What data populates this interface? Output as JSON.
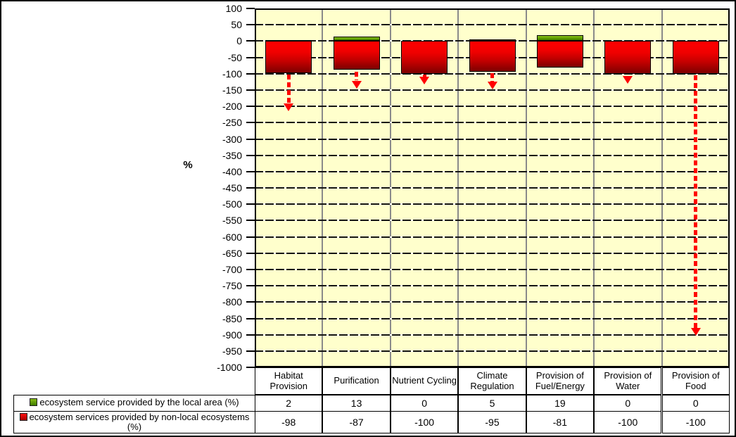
{
  "chart_data": {
    "type": "bar",
    "title": "",
    "xlabel": "",
    "ylabel": "%",
    "categories": [
      "Habitat Provision",
      "Purification",
      "Nutrient Cycling",
      "Climate Regulation",
      "Provision of Fuel/Energy",
      "Provision of Water",
      "Provision of Food"
    ],
    "series": [
      {
        "name": "ecosystem service provided by the local area (%)",
        "color": "#5F9E00",
        "values": [
          2,
          13,
          0,
          5,
          19,
          0,
          0
        ]
      },
      {
        "name": "ecosystem services provided by non-local ecosystems (%)",
        "color": "#CC0000",
        "values": [
          -98,
          -87,
          -100,
          -95,
          -81,
          -100,
          -100
        ]
      }
    ],
    "ylim": [
      -1000,
      100
    ],
    "ytick_step": 50,
    "grid": true,
    "plot_bg": "#FFFFCC",
    "legend_position": "bottom-table",
    "annotations": {
      "type": "dashed-down-arrows",
      "color": "#FF0000",
      "arrows": [
        {
          "category": "Habitat Provision",
          "from": -103,
          "to": -215
        },
        {
          "category": "Purification",
          "from": -94,
          "to": -145
        },
        {
          "category": "Nutrient Cycling",
          "from": -103,
          "to": -133
        },
        {
          "category": "Climate Regulation",
          "from": -98,
          "to": -148
        },
        {
          "category": "Provision of Water",
          "from": -108,
          "to": -130
        },
        {
          "category": "Provision of Food",
          "from": -104,
          "to": -903
        }
      ]
    }
  }
}
